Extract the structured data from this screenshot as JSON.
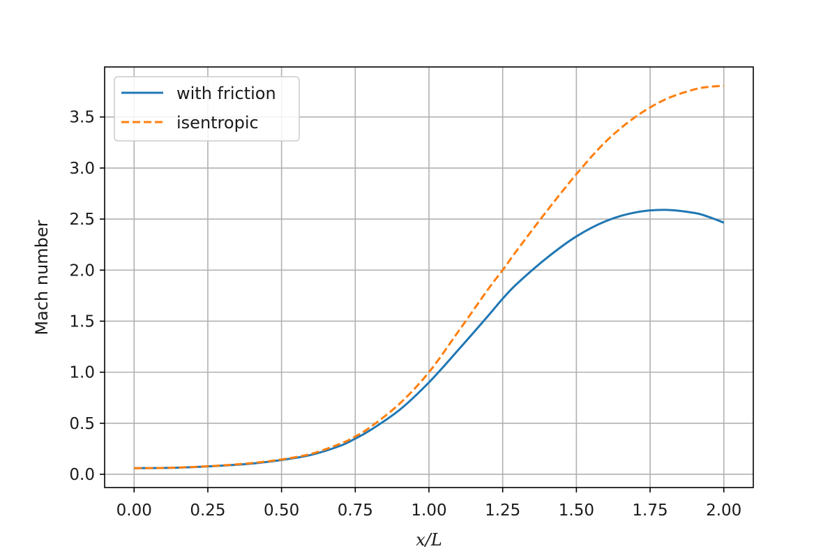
{
  "chart_data": {
    "type": "line",
    "xlabel": "x/L",
    "ylabel": "Mach number",
    "xlim": [
      -0.1,
      2.1
    ],
    "ylim": [
      -0.13,
      3.99
    ],
    "x_ticks": [
      0.0,
      0.25,
      0.5,
      0.75,
      1.0,
      1.25,
      1.5,
      1.75,
      2.0
    ],
    "x_tick_labels": [
      "0.00",
      "0.25",
      "0.50",
      "0.75",
      "1.00",
      "1.25",
      "1.50",
      "1.75",
      "2.00"
    ],
    "y_ticks": [
      0.0,
      0.5,
      1.0,
      1.5,
      2.0,
      2.5,
      3.0,
      3.5
    ],
    "y_tick_labels": [
      "0.0",
      "0.5",
      "1.0",
      "1.5",
      "2.0",
      "2.5",
      "3.0",
      "3.5"
    ],
    "grid": true,
    "legend_position": "top-left",
    "x": [
      0.0,
      0.1,
      0.2,
      0.3,
      0.4,
      0.5,
      0.6,
      0.7,
      0.75,
      0.8,
      0.9,
      1.0,
      1.1,
      1.2,
      1.25,
      1.3,
      1.4,
      1.5,
      1.6,
      1.7,
      1.8,
      1.9,
      1.95,
      2.0
    ],
    "series": [
      {
        "name": "with friction",
        "color": "#1f77b4",
        "style": "solid",
        "values": [
          0.06,
          0.062,
          0.07,
          0.085,
          0.105,
          0.14,
          0.19,
          0.28,
          0.35,
          0.43,
          0.63,
          0.9,
          1.22,
          1.55,
          1.72,
          1.87,
          2.12,
          2.33,
          2.48,
          2.565,
          2.59,
          2.56,
          2.52,
          2.465
        ]
      },
      {
        "name": "isentropic",
        "color": "#ff7f0e",
        "style": "dashed",
        "values": [
          0.06,
          0.062,
          0.072,
          0.087,
          0.11,
          0.145,
          0.2,
          0.3,
          0.37,
          0.46,
          0.69,
          1.0,
          1.4,
          1.81,
          2.0,
          2.2,
          2.58,
          2.94,
          3.26,
          3.5,
          3.67,
          3.77,
          3.795,
          3.805
        ]
      }
    ]
  }
}
